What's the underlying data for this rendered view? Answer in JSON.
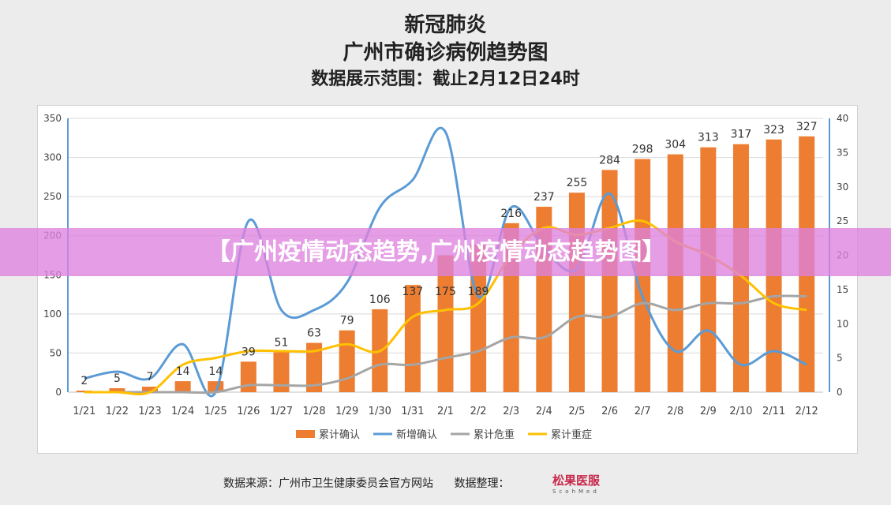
{
  "title": {
    "line1": "新冠肺炎",
    "line2": "广州市确诊病例趋势图",
    "line3": "数据展示范围：截止2月12日24时"
  },
  "watermark": "【广州疫情动态趋势,广州疫情动态趋势图】",
  "footer": {
    "source": "数据来源：广州市卫生健康委员会官方网站",
    "compiled": "数据整理：",
    "logo": "松果医服",
    "logo_sub": "ScohMed"
  },
  "chart_data": {
    "type": "bar+line",
    "categories": [
      "1/21",
      "1/22",
      "1/23",
      "1/24",
      "1/25",
      "1/26",
      "1/27",
      "1/28",
      "1/29",
      "1/30",
      "1/31",
      "2/1",
      "2/2",
      "2/3",
      "2/4",
      "2/5",
      "2/6",
      "2/7",
      "2/8",
      "2/9",
      "2/10",
      "2/11",
      "2/12"
    ],
    "left_axis": {
      "ylim": [
        0,
        350
      ],
      "ticks": [
        0,
        50,
        100,
        150,
        200,
        250,
        300,
        350
      ]
    },
    "right_axis": {
      "ylim": [
        0,
        40
      ],
      "ticks": [
        0,
        5,
        10,
        15,
        20,
        25,
        30,
        35,
        40
      ]
    },
    "grid": true,
    "legend_position": "bottom",
    "series": [
      {
        "name": "累计确认",
        "type": "bar",
        "axis": "left",
        "color": "#ed7d31",
        "values": [
          2,
          5,
          7,
          14,
          14,
          39,
          51,
          63,
          79,
          106,
          137,
          175,
          189,
          216,
          237,
          255,
          284,
          298,
          304,
          313,
          317,
          323,
          327
        ]
      },
      {
        "name": "新增确认",
        "type": "line",
        "axis": "right",
        "color": "#5b9bd5",
        "values": [
          2,
          3,
          2,
          7,
          0,
          25,
          12,
          12,
          16,
          27,
          31,
          38,
          14,
          27,
          21,
          18,
          29,
          14,
          6,
          9,
          4,
          6,
          4
        ]
      },
      {
        "name": "累计危重",
        "type": "line",
        "axis": "right",
        "color": "#a5a5a5",
        "values": [
          0,
          0,
          0,
          0,
          0,
          1,
          1,
          1,
          2,
          4,
          4,
          5,
          6,
          8,
          8,
          11,
          11,
          13,
          12,
          13,
          13,
          14,
          14
        ]
      },
      {
        "name": "累计重症",
        "type": "line",
        "axis": "right",
        "color": "#ffc000",
        "values": [
          0,
          0,
          0,
          4,
          5,
          6,
          6,
          6,
          7,
          6,
          11,
          12,
          13,
          20,
          24,
          23,
          24,
          25,
          22,
          20,
          17,
          13,
          12
        ]
      }
    ]
  }
}
